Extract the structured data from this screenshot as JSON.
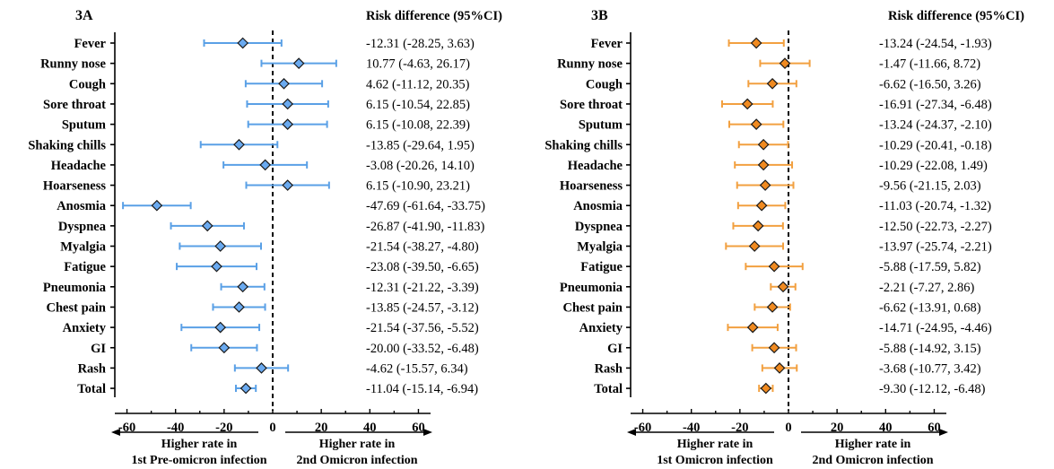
{
  "chart_data": [
    {
      "type": "forest",
      "panel_label": "3A",
      "header": "Risk difference (95%CI)",
      "color": "#5aa0e6",
      "marker_fill": "#6aaaf0",
      "xlim": [
        -65,
        65
      ],
      "xticks": [
        -60,
        -40,
        -20,
        0,
        20,
        40,
        60
      ],
      "xtick_labels": [
        "-60",
        "-40",
        "-20",
        "0",
        "20",
        "40",
        "60"
      ],
      "left_direction": [
        "Higher rate in",
        "1st Pre-omicron infection"
      ],
      "right_direction": [
        "Higher rate in",
        "2nd Omicron infection"
      ],
      "rows": [
        {
          "label": "Fever",
          "est": -12.31,
          "lo": -28.25,
          "hi": 3.63,
          "text": "-12.31 (-28.25, 3.63)"
        },
        {
          "label": "Runny nose",
          "est": 10.77,
          "lo": -4.63,
          "hi": 26.17,
          "text": "10.77 (-4.63, 26.17)"
        },
        {
          "label": "Cough",
          "est": 4.62,
          "lo": -11.12,
          "hi": 20.35,
          "text": "4.62 (-11.12, 20.35)"
        },
        {
          "label": "Sore throat",
          "est": 6.15,
          "lo": -10.54,
          "hi": 22.85,
          "text": "6.15 (-10.54, 22.85)"
        },
        {
          "label": "Sputum",
          "est": 6.15,
          "lo": -10.08,
          "hi": 22.39,
          "text": "6.15 (-10.08, 22.39)"
        },
        {
          "label": "Shaking chills",
          "est": -13.85,
          "lo": -29.64,
          "hi": 1.95,
          "text": "-13.85 (-29.64, 1.95)"
        },
        {
          "label": "Headache",
          "est": -3.08,
          "lo": -20.26,
          "hi": 14.1,
          "text": "-3.08 (-20.26, 14.10)"
        },
        {
          "label": "Hoarseness",
          "est": 6.15,
          "lo": -10.9,
          "hi": 23.21,
          "text": "6.15 (-10.90, 23.21)"
        },
        {
          "label": "Anosmia",
          "est": -47.69,
          "lo": -61.64,
          "hi": -33.75,
          "text": "-47.69 (-61.64, -33.75)"
        },
        {
          "label": "Dyspnea",
          "est": -26.87,
          "lo": -41.9,
          "hi": -11.83,
          "text": "-26.87 (-41.90, -11.83)"
        },
        {
          "label": "Myalgia",
          "est": -21.54,
          "lo": -38.27,
          "hi": -4.8,
          "text": "-21.54 (-38.27, -4.80)"
        },
        {
          "label": "Fatigue",
          "est": -23.08,
          "lo": -39.5,
          "hi": -6.65,
          "text": "-23.08 (-39.50, -6.65)"
        },
        {
          "label": "Pneumonia",
          "est": -12.31,
          "lo": -21.22,
          "hi": -3.39,
          "text": "-12.31 (-21.22, -3.39)"
        },
        {
          "label": "Chest pain",
          "est": -13.85,
          "lo": -24.57,
          "hi": -3.12,
          "text": "-13.85 (-24.57, -3.12)"
        },
        {
          "label": "Anxiety",
          "est": -21.54,
          "lo": -37.56,
          "hi": -5.52,
          "text": "-21.54 (-37.56, -5.52)"
        },
        {
          "label": "GI",
          "est": -20.0,
          "lo": -33.52,
          "hi": -6.48,
          "text": "-20.00 (-33.52, -6.48)"
        },
        {
          "label": "Rash",
          "est": -4.62,
          "lo": -15.57,
          "hi": 6.34,
          "text": "-4.62 (-15.57, 6.34)"
        },
        {
          "label": "Total",
          "est": -11.04,
          "lo": -15.14,
          "hi": -6.94,
          "text": "-11.04 (-15.14, -6.94)"
        }
      ]
    },
    {
      "type": "forest",
      "panel_label": "3B",
      "header": "Risk difference (95%CI)",
      "color": "#f2a040",
      "marker_fill": "#f08a20",
      "xlim": [
        -65,
        65
      ],
      "xticks": [
        -60,
        -40,
        -20,
        0,
        20,
        40,
        60
      ],
      "xtick_labels": [
        "-60",
        "-40",
        "-20",
        "0",
        "20",
        "40",
        "60"
      ],
      "left_direction": [
        "Higher rate in",
        "1st Omicron infection"
      ],
      "right_direction": [
        "Higher rate in",
        "2nd Omicron infection"
      ],
      "rows": [
        {
          "label": "Fever",
          "est": -13.24,
          "lo": -24.54,
          "hi": -1.93,
          "text": "-13.24 (-24.54, -1.93)"
        },
        {
          "label": "Runny nose",
          "est": -1.47,
          "lo": -11.66,
          "hi": 8.72,
          "text": "-1.47 (-11.66, 8.72)"
        },
        {
          "label": "Cough",
          "est": -6.62,
          "lo": -16.5,
          "hi": 3.26,
          "text": "-6.62 (-16.50, 3.26)"
        },
        {
          "label": "Sore throat",
          "est": -16.91,
          "lo": -27.34,
          "hi": -6.48,
          "text": "-16.91 (-27.34, -6.48)"
        },
        {
          "label": "Sputum",
          "est": -13.24,
          "lo": -24.37,
          "hi": -2.1,
          "text": "-13.24 (-24.37, -2.10)"
        },
        {
          "label": "Shaking chills",
          "est": -10.29,
          "lo": -20.41,
          "hi": -0.18,
          "text": "-10.29 (-20.41, -0.18)"
        },
        {
          "label": "Headache",
          "est": -10.29,
          "lo": -22.08,
          "hi": 1.49,
          "text": "-10.29 (-22.08, 1.49)"
        },
        {
          "label": "Hoarseness",
          "est": -9.56,
          "lo": -21.15,
          "hi": 2.03,
          "text": "-9.56 (-21.15, 2.03)"
        },
        {
          "label": "Anosmia",
          "est": -11.03,
          "lo": -20.74,
          "hi": -1.32,
          "text": "-11.03 (-20.74, -1.32)"
        },
        {
          "label": "Dyspnea",
          "est": -12.5,
          "lo": -22.73,
          "hi": -2.27,
          "text": "-12.50 (-22.73, -2.27)"
        },
        {
          "label": "Myalgia",
          "est": -13.97,
          "lo": -25.74,
          "hi": -2.21,
          "text": "-13.97 (-25.74, -2.21)"
        },
        {
          "label": "Fatigue",
          "est": -5.88,
          "lo": -17.59,
          "hi": 5.82,
          "text": "-5.88 (-17.59, 5.82)"
        },
        {
          "label": "Pneumonia",
          "est": -2.21,
          "lo": -7.27,
          "hi": 2.86,
          "text": "-2.21 (-7.27, 2.86)"
        },
        {
          "label": "Chest pain",
          "est": -6.62,
          "lo": -13.91,
          "hi": 0.68,
          "text": "-6.62 (-13.91, 0.68)"
        },
        {
          "label": "Anxiety",
          "est": -14.71,
          "lo": -24.95,
          "hi": -4.46,
          "text": "-14.71 (-24.95, -4.46)"
        },
        {
          "label": "GI",
          "est": -5.88,
          "lo": -14.92,
          "hi": 3.15,
          "text": "-5.88 (-14.92, 3.15)"
        },
        {
          "label": "Rash",
          "est": -3.68,
          "lo": -10.77,
          "hi": 3.42,
          "text": "-3.68 (-10.77, 3.42)"
        },
        {
          "label": "Total",
          "est": -9.3,
          "lo": -12.12,
          "hi": -6.48,
          "text": "-9.30 (-12.12, -6.48)"
        }
      ]
    }
  ]
}
